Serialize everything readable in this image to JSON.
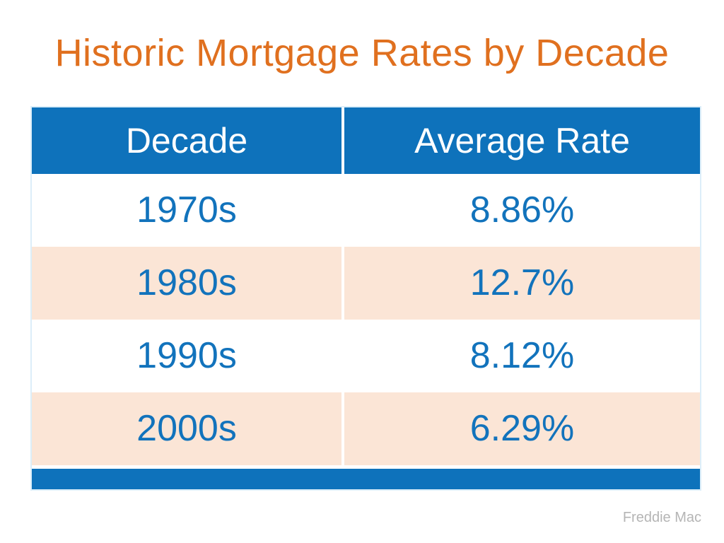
{
  "slide": {
    "title": "Historic Mortgage Rates by Decade",
    "source": "Freddie Mac"
  },
  "chart_data": {
    "type": "table",
    "title": "Historic Mortgage Rates by Decade",
    "columns": [
      "Decade",
      "Average Rate"
    ],
    "rows": [
      [
        "1970s",
        "8.86%"
      ],
      [
        "1980s",
        "12.7%"
      ],
      [
        "1990s",
        "8.12%"
      ],
      [
        "2000s",
        "6.29%"
      ]
    ],
    "values_numeric": [
      8.86,
      12.7,
      8.12,
      6.29
    ],
    "source": "Freddie Mac",
    "layout": {
      "shaded_rows": [
        1,
        3
      ],
      "grid": "none",
      "legend": "none"
    }
  },
  "colors": {
    "title_orange": "#E0701F",
    "header_blue": "#0E72BB",
    "row_text_blue": "#1273BC",
    "row_shade_peach": "#FBE5D6",
    "footer_gray": "#B5B5B5"
  }
}
